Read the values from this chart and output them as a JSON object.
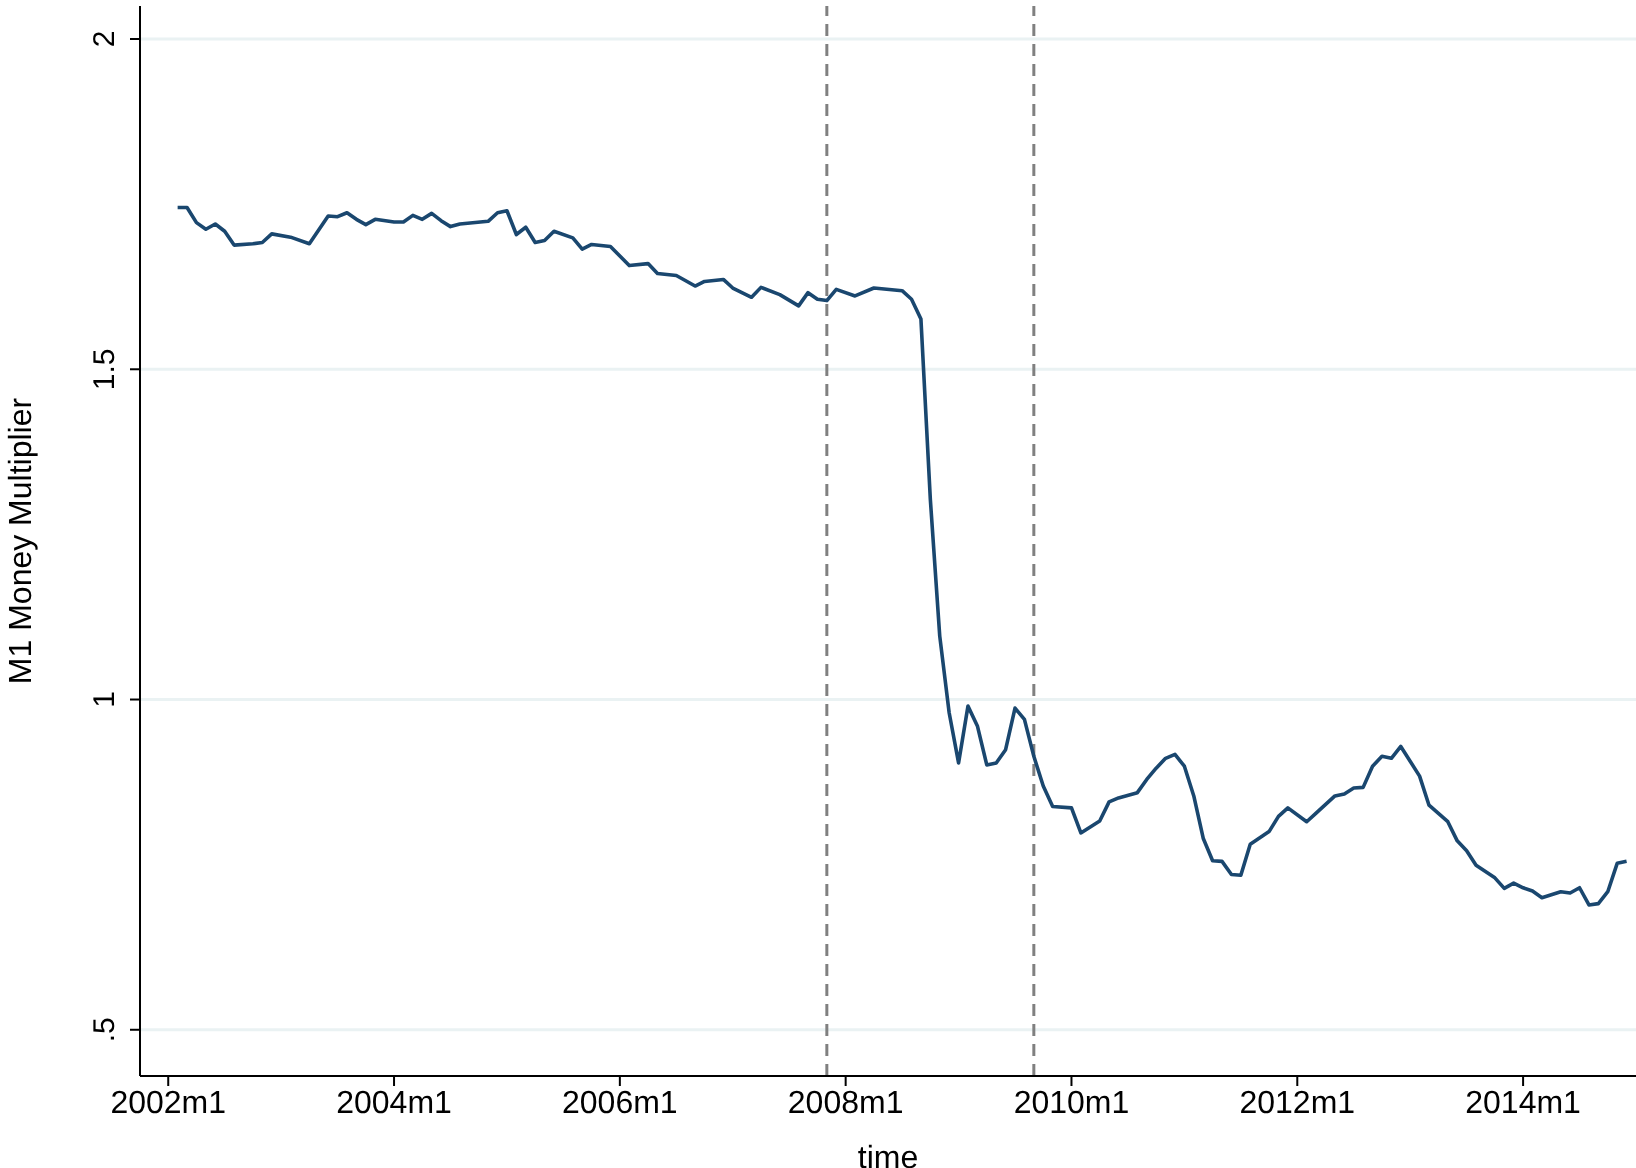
{
  "chart_data": {
    "type": "line",
    "xlabel": "time",
    "ylabel": "M1 Money Multiplier",
    "x": [
      "2002-02",
      "2002-03",
      "2002-04",
      "2002-05",
      "2002-06",
      "2002-07",
      "2002-08",
      "2002-10",
      "2002-11",
      "2002-12",
      "2003-02",
      "2003-04",
      "2003-06",
      "2003-07",
      "2003-08",
      "2003-09",
      "2003-10",
      "2003-11",
      "2004-01",
      "2004-02",
      "2004-03",
      "2004-04",
      "2004-05",
      "2004-06",
      "2004-07",
      "2004-08",
      "2004-11",
      "2004-12",
      "2005-01",
      "2005-02",
      "2005-03",
      "2005-04",
      "2005-05",
      "2005-06",
      "2005-08",
      "2005-09",
      "2005-10",
      "2005-12",
      "2006-02",
      "2006-04",
      "2006-05",
      "2006-07",
      "2006-09",
      "2006-10",
      "2006-12",
      "2007-01",
      "2007-03",
      "2007-04",
      "2007-06",
      "2007-08",
      "2007-09",
      "2007-10",
      "2007-11",
      "2007-12",
      "2008-02",
      "2008-04",
      "2008-07",
      "2008-08",
      "2008-09",
      "2008-10",
      "2008-11",
      "2008-12",
      "2009-01",
      "2009-02",
      "2009-03",
      "2009-04",
      "2009-05",
      "2009-06",
      "2009-07",
      "2009-08",
      "2009-09",
      "2009-10",
      "2009-11",
      "2010-01",
      "2010-02",
      "2010-04",
      "2010-05",
      "2010-06",
      "2010-08",
      "2010-09",
      "2010-10",
      "2010-11",
      "2010-12",
      "2011-01",
      "2011-02",
      "2011-03",
      "2011-04",
      "2011-05",
      "2011-06",
      "2011-07",
      "2011-08",
      "2011-10",
      "2011-11",
      "2011-12",
      "2012-02",
      "2012-03",
      "2012-05",
      "2012-06",
      "2012-07",
      "2012-08",
      "2012-09",
      "2012-10",
      "2012-11",
      "2012-12",
      "2013-02",
      "2013-03",
      "2013-05",
      "2013-06",
      "2013-07",
      "2013-08",
      "2013-10",
      "2013-11",
      "2013-12",
      "2014-01",
      "2014-02",
      "2014-03",
      "2014-05",
      "2014-06",
      "2014-07",
      "2014-08",
      "2014-09",
      "2014-10",
      "2014-11",
      "2014-12"
    ],
    "series": [
      {
        "color": "#1a476f",
        "values": [
          1.745,
          1.745,
          1.722,
          1.712,
          1.72,
          1.709,
          1.688,
          1.69,
          1.692,
          1.705,
          1.7,
          1.69,
          1.732,
          1.731,
          1.737,
          1.727,
          1.719,
          1.727,
          1.723,
          1.723,
          1.733,
          1.727,
          1.736,
          1.725,
          1.716,
          1.72,
          1.724,
          1.737,
          1.74,
          1.704,
          1.715,
          1.692,
          1.695,
          1.709,
          1.699,
          1.682,
          1.689,
          1.686,
          1.657,
          1.66,
          1.645,
          1.642,
          1.626,
          1.633,
          1.636,
          1.623,
          1.609,
          1.624,
          1.613,
          1.596,
          1.616,
          1.606,
          1.604,
          1.621,
          1.611,
          1.623,
          1.619,
          1.606,
          1.576,
          1.303,
          1.096,
          0.98,
          0.904,
          0.99,
          0.96,
          0.901,
          0.904,
          0.924,
          0.987,
          0.97,
          0.914,
          0.869,
          0.838,
          0.836,
          0.798,
          0.816,
          0.845,
          0.851,
          0.859,
          0.879,
          0.896,
          0.911,
          0.917,
          0.899,
          0.854,
          0.79,
          0.756,
          0.755,
          0.735,
          0.734,
          0.781,
          0.8,
          0.823,
          0.836,
          0.815,
          0.828,
          0.854,
          0.857,
          0.866,
          0.867,
          0.899,
          0.914,
          0.911,
          0.929,
          0.884,
          0.84,
          0.815,
          0.786,
          0.771,
          0.749,
          0.73,
          0.714,
          0.722,
          0.715,
          0.71,
          0.7,
          0.709,
          0.707,
          0.715,
          0.689,
          0.691,
          0.709,
          0.752,
          0.755
        ]
      }
    ],
    "xlim": [
      "2001-10",
      "2015-01"
    ],
    "xticks": [
      {
        "value": "2002-01",
        "label": "2002m1"
      },
      {
        "value": "2004-01",
        "label": "2004m1"
      },
      {
        "value": "2006-01",
        "label": "2006m1"
      },
      {
        "value": "2008-01",
        "label": "2008m1"
      },
      {
        "value": "2010-01",
        "label": "2010m1"
      },
      {
        "value": "2012-01",
        "label": "2012m1"
      },
      {
        "value": "2014-01",
        "label": "2014m1"
      }
    ],
    "ylim": [
      0.43,
      2.05
    ],
    "yticks": [
      {
        "value": 0.5,
        "label": ".5"
      },
      1,
      1.5,
      2
    ],
    "grid": "y",
    "ref_lines": [
      {
        "axis": "x",
        "value": "2007-11",
        "color": "#808080",
        "line_style": "dashed"
      },
      {
        "axis": "x",
        "value": "2009-09",
        "color": "#808080",
        "line_style": "dashed"
      }
    ],
    "legend": false
  }
}
